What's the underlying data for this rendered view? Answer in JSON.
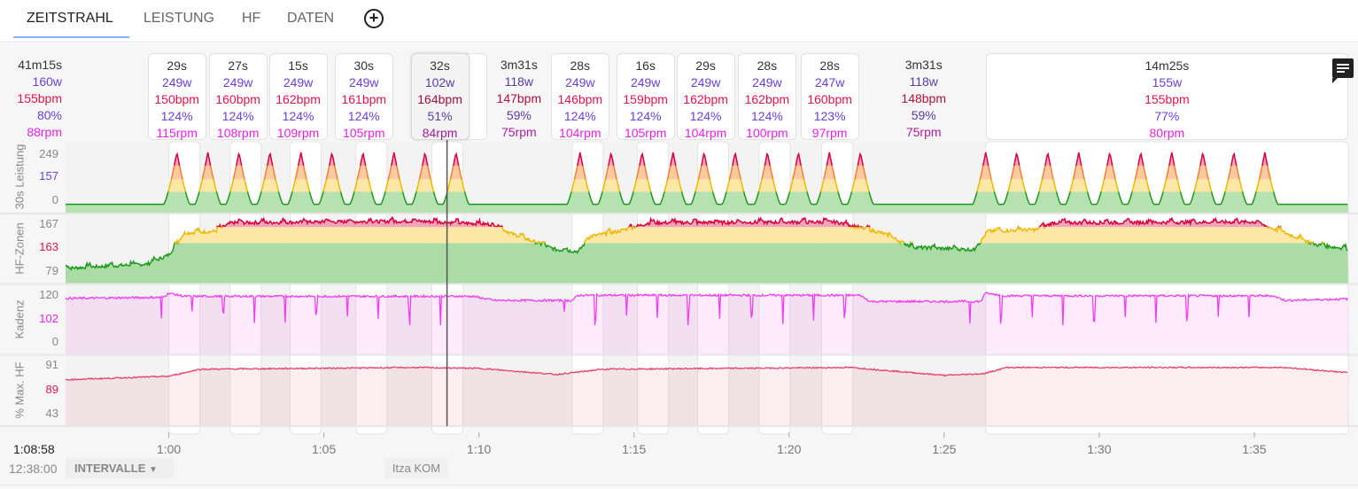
{
  "tabs": [
    {
      "label": "ZEITSTRAHL",
      "active": true
    },
    {
      "label": "LEISTUNG"
    },
    {
      "label": "HF"
    },
    {
      "label": "DATEN"
    }
  ],
  "add_tab_icon": "plus-circle-icon",
  "summary": {
    "duration": "41m15s",
    "power": "160w",
    "hr": "155bpm",
    "pct": "80%",
    "cadence": "88rpm"
  },
  "intervals": [
    {
      "type": "work",
      "center_min": 60.26,
      "duration": "29s",
      "power": "249w",
      "hr": "150bpm",
      "pct": "124%",
      "cadence": "115rpm"
    },
    {
      "type": "work",
      "center_min": 62.23,
      "duration": "27s",
      "power": "249w",
      "hr": "160bpm",
      "pct": "124%",
      "cadence": "108rpm"
    },
    {
      "type": "work",
      "center_min": 64.17,
      "duration": "15s",
      "power": "249w",
      "hr": "162bpm",
      "pct": "124%",
      "cadence": "109rpm"
    },
    {
      "type": "work",
      "center_min": 66.29,
      "duration": "30s",
      "power": "249w",
      "hr": "161bpm",
      "pct": "124%",
      "cadence": "105rpm"
    },
    {
      "type": "hover",
      "center_min": 68.74,
      "duration": "32s",
      "power": "102w",
      "hr": "164bpm",
      "pct": "51%",
      "cadence": "84rpm"
    },
    {
      "type": "rest",
      "center_min": 71.29,
      "duration": "3m31s",
      "power": "118w",
      "hr": "147bpm",
      "pct": "59%",
      "cadence": "75rpm"
    },
    {
      "type": "work",
      "center_min": 73.26,
      "duration": "28s",
      "power": "249w",
      "hr": "146bpm",
      "pct": "124%",
      "cadence": "104rpm"
    },
    {
      "type": "work",
      "center_min": 75.37,
      "duration": "16s",
      "power": "249w",
      "hr": "159bpm",
      "pct": "124%",
      "cadence": "105rpm"
    },
    {
      "type": "work",
      "center_min": 77.31,
      "duration": "29s",
      "power": "249w",
      "hr": "162bpm",
      "pct": "124%",
      "cadence": "104rpm"
    },
    {
      "type": "work",
      "center_min": 79.29,
      "duration": "28s",
      "power": "249w",
      "hr": "162bpm",
      "pct": "124%",
      "cadence": "100rpm"
    },
    {
      "type": "work",
      "center_min": 81.31,
      "duration": "28s",
      "power": "247w",
      "hr": "160bpm",
      "pct": "123%",
      "cadence": "97rpm"
    },
    {
      "type": "rest",
      "center_min": 84.34,
      "duration": "3m31s",
      "power": "118w",
      "hr": "148bpm",
      "pct": "59%",
      "cadence": "75rpm"
    },
    {
      "type": "wide",
      "start_min": 86.34,
      "end_min": 98.03,
      "duration": "14m25s",
      "power": "155w",
      "hr": "155bpm",
      "pct": "77%",
      "cadence": "80rpm"
    }
  ],
  "panels": [
    {
      "name": "30s Leistung",
      "ticks": [
        "249",
        "157",
        "0"
      ],
      "mid_color": "#6a3fd8"
    },
    {
      "name": "HF-Zonen",
      "ticks": [
        "167",
        "163",
        "79"
      ],
      "mid_color": "#e0134a"
    },
    {
      "name": "Kadenz",
      "ticks": [
        "120",
        "102",
        "0"
      ],
      "mid_color": "#e81ee8"
    },
    {
      "name": "% Max. HF",
      "ticks": [
        "91",
        "89",
        "43"
      ],
      "mid_color": "#e0134a"
    }
  ],
  "chart_data": {
    "type": "line",
    "x_range_min": [
      56.67,
      98.03
    ],
    "x_ticks": [
      "1:00",
      "1:05",
      "1:10",
      "1:15",
      "1:20",
      "1:25",
      "1:30",
      "1:35"
    ],
    "x_tick_min": [
      60,
      65,
      70,
      75,
      80,
      85,
      90,
      95
    ],
    "cursor_min": 68.97,
    "power_peaks_min": [
      60.26,
      61.26,
      62.26,
      63.26,
      64.26,
      65.26,
      66.26,
      67.26,
      68.26,
      69.26,
      73.26,
      74.26,
      75.26,
      76.26,
      77.26,
      78.26,
      79.3,
      80.3,
      81.3,
      82.3,
      86.34,
      87.34,
      88.34,
      89.34,
      90.34,
      91.34,
      92.34,
      93.34,
      94.34,
      95.34
    ],
    "power_peak_value": 249,
    "hr_keypoints": [
      [
        56.67,
        108
      ],
      [
        59.3,
        113
      ],
      [
        60,
        124
      ],
      [
        60.5,
        150
      ],
      [
        61.5,
        152
      ],
      [
        62,
        162
      ],
      [
        68,
        164
      ],
      [
        70.5,
        160
      ],
      [
        71,
        150
      ],
      [
        72.5,
        130
      ],
      [
        73.2,
        128
      ],
      [
        73.6,
        146
      ],
      [
        74.5,
        152
      ],
      [
        75.5,
        162
      ],
      [
        81.5,
        163
      ],
      [
        83,
        150
      ],
      [
        84,
        133
      ],
      [
        86,
        130
      ],
      [
        86.4,
        152
      ],
      [
        88,
        154
      ],
      [
        88.5,
        162
      ],
      [
        95,
        163
      ],
      [
        96,
        150
      ],
      [
        97,
        136
      ],
      [
        98.03,
        131
      ]
    ],
    "cadence_levels": [
      [
        56.67,
        108
      ],
      [
        59.8,
        110
      ],
      [
        60,
        118
      ],
      [
        60.5,
        112
      ],
      [
        69.8,
        112
      ],
      [
        70.5,
        104
      ],
      [
        73,
        104
      ],
      [
        73.2,
        114
      ],
      [
        82.3,
        114
      ],
      [
        82.6,
        102
      ],
      [
        86.2,
        102
      ],
      [
        86.3,
        118
      ],
      [
        87,
        113
      ],
      [
        95.6,
        113
      ],
      [
        96,
        104
      ],
      [
        98.03,
        107
      ]
    ],
    "pct_hr_keypoints": [
      [
        56.67,
        72
      ],
      [
        60,
        76
      ],
      [
        61,
        84
      ],
      [
        68,
        86
      ],
      [
        70,
        85
      ],
      [
        72.5,
        78
      ],
      [
        74,
        84
      ],
      [
        82,
        86
      ],
      [
        85,
        77
      ],
      [
        86.3,
        79
      ],
      [
        87,
        86
      ],
      [
        96,
        86
      ],
      [
        98.03,
        80
      ]
    ]
  },
  "cursor_time": "1:08:58",
  "clock_time": "12:38:00",
  "intervals_button": "INTERVALLE",
  "segment_label": "Itza KOM",
  "comment_icon": "comment-icon"
}
